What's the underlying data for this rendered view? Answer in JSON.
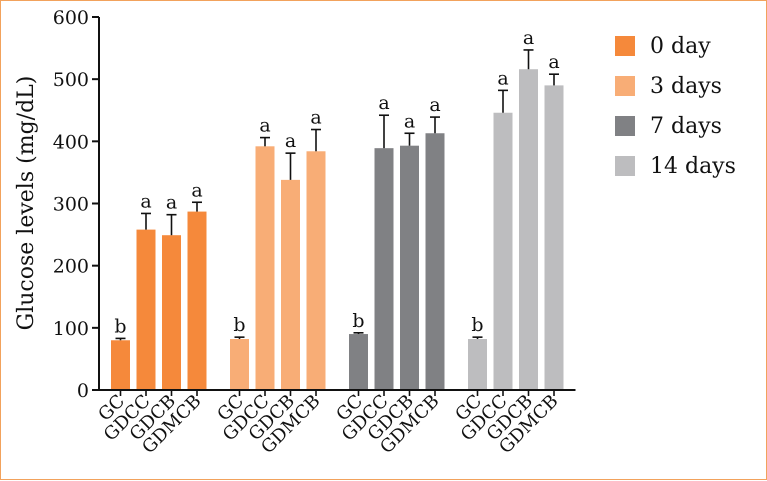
{
  "chart_data": {
    "type": "bar",
    "title": "",
    "xlabel": "",
    "ylabel": "Glucose levels (mg/dL)",
    "ylim": [
      0,
      600
    ],
    "yticks": [
      0,
      100,
      200,
      300,
      400,
      500,
      600
    ],
    "categories": [
      "GC",
      "GDCC",
      "GDCB",
      "GDMCB"
    ],
    "legend_position": "top-right",
    "grid": false,
    "series": [
      {
        "name": "0 day",
        "color": "#f5893b",
        "values": [
          80,
          258,
          249,
          287
        ],
        "errors": [
          3,
          26,
          33,
          15
        ],
        "letters": [
          "b",
          "a",
          "a",
          "a"
        ]
      },
      {
        "name": "3 days",
        "color": "#f8ad76",
        "values": [
          82,
          392,
          338,
          384
        ],
        "errors": [
          3,
          14,
          43,
          35
        ],
        "letters": [
          "b",
          "a",
          "a",
          "a"
        ]
      },
      {
        "name": "7 days",
        "color": "#808184",
        "values": [
          90,
          389,
          393,
          413
        ],
        "errors": [
          2,
          53,
          20,
          26
        ],
        "letters": [
          "b",
          "a",
          "a",
          "a"
        ]
      },
      {
        "name": "14 days",
        "color": "#bdbdbf",
        "values": [
          82,
          446,
          516,
          490
        ],
        "errors": [
          3,
          36,
          31,
          18
        ],
        "letters": [
          "b",
          "a",
          "a",
          "a"
        ]
      }
    ]
  }
}
